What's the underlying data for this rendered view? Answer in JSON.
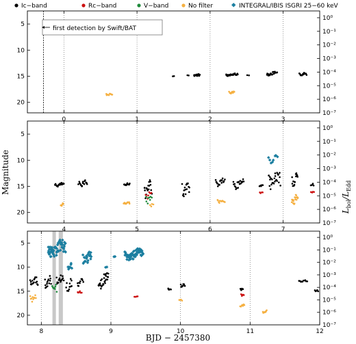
{
  "figure": {
    "legend": [
      {
        "label": "Ic−band",
        "color": "#000000",
        "shape": "circle"
      },
      {
        "label": "Rc−band",
        "color": "#cc1111",
        "shape": "circle"
      },
      {
        "label": "V−band",
        "color": "#1f8a3c",
        "shape": "circle"
      },
      {
        "label": "No filter",
        "color": "#f5b041",
        "shape": "circle"
      },
      {
        "label": "INTEGRAL/IBIS ISGRI 25−60 keV",
        "color": "#1c7fa0",
        "shape": "diamond"
      }
    ],
    "xlabel": "BJD − 2457380",
    "ylabel_left": "Magnitude",
    "ylabel_right_main": "L",
    "ylabel_right_sub1": "bol",
    "ylabel_right_sep": "/L",
    "ylabel_right_sub2": "Edd",
    "annotation": "first detection by Swift/BAT"
  },
  "chart_data": [
    {
      "type": "scatter",
      "panel": "top",
      "xlim": [
        -0.5,
        3.5
      ],
      "ylim_mag": [
        2.5,
        22
      ],
      "y_inverted": true,
      "xticks": [
        "0",
        "1",
        "2",
        "3"
      ],
      "yticks": [
        "5",
        "10",
        "15",
        "20"
      ],
      "right_ticks": [
        "10⁰",
        "10⁻¹",
        "10⁻²",
        "10⁻³",
        "10⁻⁴",
        "10⁻⁵",
        "10⁻⁶",
        "10⁻⁷"
      ],
      "right_range_log": [
        0.5,
        -7
      ],
      "series": [
        {
          "name": "Ic−band",
          "color": "#000000",
          "segments": [
            {
              "x0": 1.49,
              "x1": 1.51,
              "y": 15.0,
              "amp": 0.1,
              "n": 2
            },
            {
              "x0": 1.69,
              "x1": 1.71,
              "y": 14.8,
              "amp": 0.1,
              "n": 2
            },
            {
              "x0": 1.78,
              "x1": 1.86,
              "y": 14.8,
              "amp": 0.3,
              "n": 14
            },
            {
              "x0": 2.22,
              "x1": 2.38,
              "y": 14.7,
              "amp": 0.3,
              "n": 24
            },
            {
              "x0": 2.51,
              "x1": 2.53,
              "y": 14.8,
              "amp": 0.1,
              "n": 2
            },
            {
              "x0": 2.78,
              "x1": 2.92,
              "y": 14.5,
              "amp": 0.4,
              "n": 22
            },
            {
              "x0": 3.22,
              "x1": 3.32,
              "y": 14.6,
              "amp": 0.3,
              "n": 14
            }
          ]
        },
        {
          "name": "No filter",
          "color": "#f5b041",
          "segments": [
            {
              "x0": 0.58,
              "x1": 0.66,
              "y": 18.4,
              "amp": 0.3,
              "n": 10
            },
            {
              "x0": 2.26,
              "x1": 2.33,
              "y": 18.1,
              "amp": 0.3,
              "n": 10
            }
          ]
        }
      ],
      "vlines": [
        -0.28,
        0,
        1,
        2,
        3
      ],
      "annotation_x": -0.28
    },
    {
      "type": "scatter",
      "panel": "middle",
      "xlim": [
        3.5,
        7.5
      ],
      "ylim_mag": [
        2.5,
        22
      ],
      "y_inverted": true,
      "xticks": [
        "4",
        "5",
        "6",
        "7"
      ],
      "yticks": [
        "5",
        "10",
        "15",
        "20"
      ],
      "right_ticks": [
        "10⁰",
        "10⁻¹",
        "10⁻²",
        "10⁻³",
        "10⁻⁴",
        "10⁻⁵",
        "10⁻⁶",
        "10⁻⁷"
      ],
      "right_range_log": [
        0.5,
        -7
      ],
      "series": [
        {
          "name": "Ic−band",
          "color": "#000000",
          "segments": [
            {
              "x0": 3.88,
              "x1": 4.0,
              "y": 14.7,
              "amp": 0.4,
              "n": 20
            },
            {
              "x0": 4.2,
              "x1": 4.32,
              "y": 14.4,
              "amp": 0.7,
              "n": 18
            },
            {
              "x0": 4.82,
              "x1": 4.9,
              "y": 14.6,
              "amp": 0.3,
              "n": 12
            },
            {
              "x0": 5.1,
              "x1": 5.2,
              "y": 15.6,
              "amp": 1.8,
              "n": 18
            },
            {
              "x0": 5.62,
              "x1": 5.72,
              "y": 15.5,
              "amp": 1.6,
              "n": 16
            },
            {
              "x0": 6.08,
              "x1": 6.2,
              "y": 14.2,
              "amp": 1.0,
              "n": 18
            },
            {
              "x0": 6.32,
              "x1": 6.46,
              "y": 14.5,
              "amp": 1.4,
              "n": 20
            },
            {
              "x0": 6.68,
              "x1": 6.72,
              "y": 14.8,
              "amp": 0.3,
              "n": 5
            },
            {
              "x0": 6.8,
              "x1": 6.96,
              "y": 13.8,
              "amp": 1.8,
              "n": 28
            },
            {
              "x0": 7.12,
              "x1": 7.2,
              "y": 13.8,
              "amp": 1.6,
              "n": 14
            },
            {
              "x0": 7.38,
              "x1": 7.42,
              "y": 14.8,
              "amp": 0.4,
              "n": 5
            }
          ]
        },
        {
          "name": "Rc−band",
          "color": "#cc1111",
          "segments": [
            {
              "x0": 5.12,
              "x1": 5.2,
              "y": 16.6,
              "amp": 0.8,
              "n": 8
            },
            {
              "x0": 6.68,
              "x1": 6.72,
              "y": 16.1,
              "amp": 0.3,
              "n": 4
            },
            {
              "x0": 7.38,
              "x1": 7.42,
              "y": 16.0,
              "amp": 0.3,
              "n": 4
            }
          ]
        },
        {
          "name": "V−band",
          "color": "#1f8a3c",
          "segments": [
            {
              "x0": 5.12,
              "x1": 5.2,
              "y": 17.5,
              "amp": 0.8,
              "n": 8
            }
          ]
        },
        {
          "name": "No filter",
          "color": "#f5b041",
          "segments": [
            {
              "x0": 3.96,
              "x1": 3.99,
              "y": 18.5,
              "amp": 0.3,
              "n": 5
            },
            {
              "x0": 4.82,
              "x1": 4.9,
              "y": 18.2,
              "amp": 0.2,
              "n": 12
            },
            {
              "x0": 5.18,
              "x1": 5.22,
              "y": 18.6,
              "amp": 0.3,
              "n": 4
            },
            {
              "x0": 6.1,
              "x1": 6.2,
              "y": 17.8,
              "amp": 0.4,
              "n": 12
            },
            {
              "x0": 7.12,
              "x1": 7.2,
              "y": 17.6,
              "amp": 1.4,
              "n": 18
            }
          ]
        },
        {
          "name": "INTEGRAL/IBIS ISGRI 25−60 keV",
          "color": "#1c7fa0",
          "segments": [
            {
              "x0": 6.8,
              "x1": 6.92,
              "y": 9.8,
              "amp": 0.8,
              "n": 8
            }
          ]
        }
      ],
      "vlines": [
        4,
        5,
        6,
        7
      ]
    },
    {
      "type": "scatter",
      "panel": "bottom",
      "xlim": [
        7.8,
        12.0
      ],
      "ylim_mag": [
        2.5,
        22
      ],
      "y_inverted": true,
      "xticks": [
        "8",
        "9",
        "10",
        "11",
        "12"
      ],
      "yticks": [
        "5",
        "10",
        "15",
        "20"
      ],
      "right_ticks": [
        "10⁰",
        "10⁻¹",
        "10⁻²",
        "10⁻³",
        "10⁻⁴",
        "10⁻⁵",
        "10⁻⁶",
        "10⁻⁷"
      ],
      "right_range_log": [
        0.5,
        -7
      ],
      "shaded_bands": [
        [
          8.16,
          8.21
        ],
        [
          8.25,
          8.31
        ]
      ],
      "series": [
        {
          "name": "Ic−band",
          "color": "#000000",
          "segments": [
            {
              "x0": 7.84,
              "x1": 7.95,
              "y": 13.0,
              "amp": 1.2,
              "n": 18
            },
            {
              "x0": 8.05,
              "x1": 8.14,
              "y": 13.2,
              "amp": 1.4,
              "n": 14
            },
            {
              "x0": 8.22,
              "x1": 8.32,
              "y": 12.6,
              "amp": 1.2,
              "n": 16
            },
            {
              "x0": 8.36,
              "x1": 8.44,
              "y": 13.8,
              "amp": 1.4,
              "n": 12
            },
            {
              "x0": 8.52,
              "x1": 8.6,
              "y": 13.2,
              "amp": 0.8,
              "n": 10
            },
            {
              "x0": 8.82,
              "x1": 8.96,
              "y": 13.0,
              "amp": 1.6,
              "n": 22
            },
            {
              "x0": 8.9,
              "x1": 8.96,
              "y": 11.4,
              "amp": 0.2,
              "n": 6
            },
            {
              "x0": 9.82,
              "x1": 9.86,
              "y": 14.6,
              "amp": 0.4,
              "n": 5
            },
            {
              "x0": 10.0,
              "x1": 10.06,
              "y": 13.8,
              "amp": 0.4,
              "n": 8
            },
            {
              "x0": 10.86,
              "x1": 10.9,
              "y": 14.6,
              "amp": 0.3,
              "n": 5
            },
            {
              "x0": 11.7,
              "x1": 11.82,
              "y": 12.9,
              "amp": 0.2,
              "n": 10
            },
            {
              "x0": 11.93,
              "x1": 11.98,
              "y": 15.0,
              "amp": 0.4,
              "n": 5
            }
          ]
        },
        {
          "name": "Rc−band",
          "color": "#cc1111",
          "segments": [
            {
              "x0": 8.52,
              "x1": 8.58,
              "y": 15.3,
              "amp": 0.4,
              "n": 6
            },
            {
              "x0": 9.34,
              "x1": 9.38,
              "y": 16.1,
              "amp": 0.1,
              "n": 4
            },
            {
              "x0": 10.87,
              "x1": 10.91,
              "y": 15.8,
              "amp": 0.5,
              "n": 6
            }
          ]
        },
        {
          "name": "V−band",
          "color": "#1f8a3c",
          "segments": [
            {
              "x0": 8.16,
              "x1": 8.22,
              "y": 14.5,
              "amp": 1.2,
              "n": 8
            }
          ]
        },
        {
          "name": "No filter",
          "color": "#f5b041",
          "segments": [
            {
              "x0": 7.84,
              "x1": 7.92,
              "y": 16.5,
              "amp": 0.8,
              "n": 10
            },
            {
              "x0": 9.98,
              "x1": 10.02,
              "y": 16.8,
              "amp": 0.3,
              "n": 4
            },
            {
              "x0": 10.86,
              "x1": 10.92,
              "y": 18.0,
              "amp": 0.4,
              "n": 8
            },
            {
              "x0": 11.18,
              "x1": 11.24,
              "y": 19.2,
              "amp": 0.5,
              "n": 8
            }
          ]
        },
        {
          "name": "INTEGRAL/IBIS ISGRI 25−60 keV",
          "color": "#1c7fa0",
          "segments": [
            {
              "x0": 8.1,
              "x1": 8.35,
              "y": 6.2,
              "amp": 2.0,
              "n": 60
            },
            {
              "x0": 8.38,
              "x1": 8.44,
              "y": 10.2,
              "amp": 1.2,
              "n": 8
            },
            {
              "x0": 8.6,
              "x1": 8.72,
              "y": 8.0,
              "amp": 2.0,
              "n": 22
            },
            {
              "x0": 8.92,
              "x1": 8.94,
              "y": 10.0,
              "amp": 0.1,
              "n": 2
            },
            {
              "x0": 9.04,
              "x1": 9.06,
              "y": 7.8,
              "amp": 0.1,
              "n": 2
            },
            {
              "x0": 9.2,
              "x1": 9.46,
              "y": 7.4,
              "amp": 1.3,
              "n": 60
            }
          ]
        }
      ],
      "vlines": [
        8,
        9,
        10,
        11
      ]
    }
  ]
}
